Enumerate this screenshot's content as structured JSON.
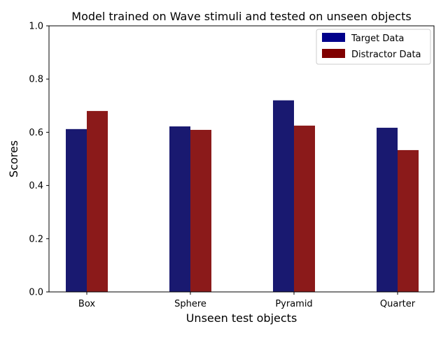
{
  "chart_data": {
    "type": "bar",
    "title": "Model trained on Wave stimuli and tested on unseen objects",
    "xlabel": "Unseen test objects",
    "ylabel": "Scores",
    "ylim": [
      0,
      1.0
    ],
    "yticks": [
      "0.0",
      "0.2",
      "0.4",
      "0.6",
      "0.8",
      "1.0"
    ],
    "categories": [
      "Box",
      "Sphere",
      "Pyramid",
      "Quarter"
    ],
    "series": [
      {
        "name": "Target Data",
        "color": "#191970",
        "legend_color": "#00008b",
        "values": [
          0.612,
          0.622,
          0.72,
          0.617
        ]
      },
      {
        "name": "Distractor Data",
        "color": "#8b1a1a",
        "legend_color": "#800000",
        "values": [
          0.68,
          0.609,
          0.625,
          0.533
        ]
      }
    ],
    "grid": false,
    "legend": "top-right"
  }
}
